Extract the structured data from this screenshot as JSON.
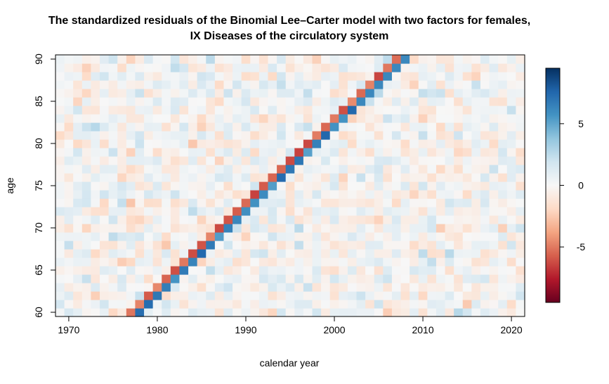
{
  "chart_data": {
    "type": "heatmap",
    "title": "The standardized residuals of the Binomial Lee–Carter model with two factors for females,",
    "subtitle": "IX Diseases of the circulatory system",
    "xlabel": "calendar year",
    "ylabel": "age",
    "x_range": [
      1969,
      2021
    ],
    "y_range": [
      60,
      90
    ],
    "x_ticks": [
      "1970",
      "1980",
      "1990",
      "2000",
      "2010",
      "2020"
    ],
    "y_ticks": [
      "60",
      "65",
      "70",
      "75",
      "80",
      "85",
      "90"
    ],
    "colorbar": {
      "range": [
        -9.5,
        9.5
      ],
      "ticks": [
        "-5",
        "0",
        "5"
      ],
      "colors": [
        "#67001f",
        "#b2182b",
        "#d6604d",
        "#f4a582",
        "#fddbc7",
        "#f7f7f7",
        "#d1e5f0",
        "#92c5de",
        "#4393c3",
        "#2166ac",
        "#053061"
      ]
    },
    "pattern": {
      "cohort_bands": [
        {
          "description": "negative residual band",
          "birth_year": 1917,
          "value": -5.5
        },
        {
          "description": "positive residual band",
          "birth_year": 1918,
          "value": 6.5
        }
      ],
      "background": "noise within [-2, 2]"
    }
  }
}
